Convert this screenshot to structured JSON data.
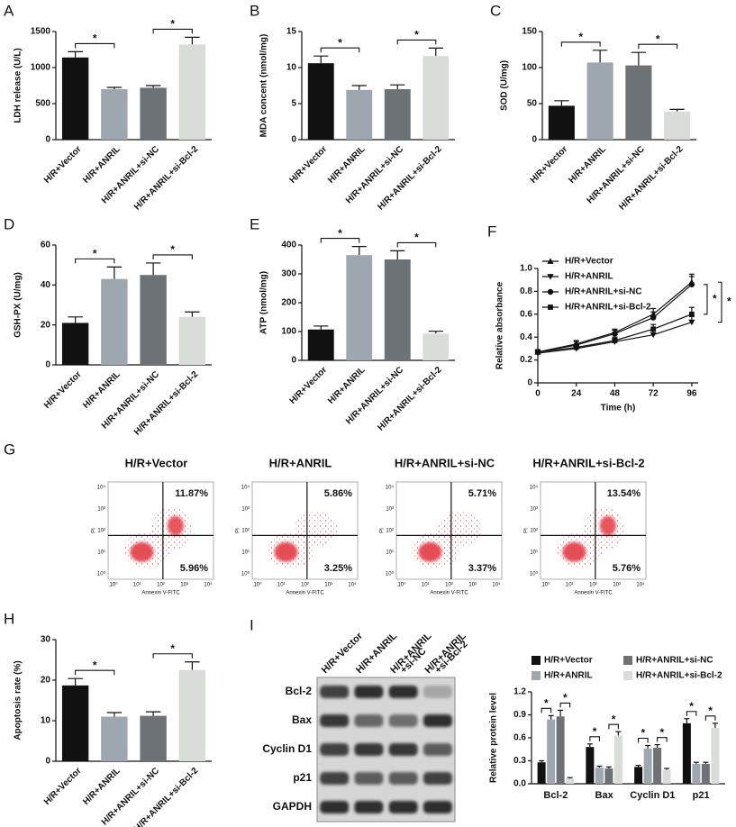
{
  "chart_data": [
    {
      "type": "bar",
      "panel": "A",
      "ylabel": "LDH release (U/L)",
      "categories": [
        "H/R+Vector",
        "H/R+ANRIL",
        "H/R+ANRIL+si-NC",
        "H/R+ANRIL+si-Bcl-2"
      ],
      "values": [
        1140,
        700,
        720,
        1320
      ],
      "errors": [
        80,
        25,
        30,
        100
      ],
      "colors": [
        "#111111",
        "#9ea7b0",
        "#6d7277",
        "#d9ddd8"
      ],
      "ylim": [
        0,
        1500
      ],
      "yticks": [
        0,
        500,
        1000,
        1500
      ],
      "annotations": [
        "*",
        "*"
      ]
    },
    {
      "type": "bar",
      "panel": "B",
      "ylabel": "MDA concent (nmol/mg)",
      "categories": [
        "H/R+Vector",
        "H/R+ANRIL",
        "H/R+ANRIL+si-NC",
        "H/R+ANRIL+si-Bcl-2"
      ],
      "values": [
        10.6,
        6.9,
        7.0,
        11.6
      ],
      "errors": [
        1.0,
        0.6,
        0.6,
        1.1
      ],
      "colors": [
        "#111111",
        "#9ea7b0",
        "#6d7277",
        "#d9ddd8"
      ],
      "ylim": [
        0,
        15
      ],
      "yticks": [
        0,
        5,
        10,
        15
      ],
      "annotations": [
        "*",
        "*"
      ]
    },
    {
      "type": "bar",
      "panel": "C",
      "ylabel": "SOD (U/mg)",
      "categories": [
        "H/R+Vector",
        "H/R+ANRIL",
        "H/R+ANRIL+si-NC",
        "H/R+ANRIL+si-Bcl-2"
      ],
      "values": [
        47,
        107,
        103,
        39
      ],
      "errors": [
        7,
        17,
        18,
        3
      ],
      "colors": [
        "#111111",
        "#9ea7b0",
        "#6d7277",
        "#d9ddd8"
      ],
      "ylim": [
        0,
        150
      ],
      "yticks": [
        0,
        50,
        100,
        150
      ],
      "annotations": [
        "*",
        "*"
      ]
    },
    {
      "type": "bar",
      "panel": "D",
      "ylabel": "GSH-PX (U/mg)",
      "categories": [
        "H/R+Vector",
        "H/R+ANRIL",
        "H/R+ANRIL+si-NC",
        "H/R+ANRIL+si-Bcl-2"
      ],
      "values": [
        21,
        43,
        45,
        24
      ],
      "errors": [
        3,
        6,
        6,
        2.5
      ],
      "colors": [
        "#111111",
        "#9ea7b0",
        "#6d7277",
        "#d9ddd8"
      ],
      "ylim": [
        0,
        60
      ],
      "yticks": [
        0,
        20,
        40,
        60
      ],
      "annotations": [
        "*",
        "*"
      ]
    },
    {
      "type": "bar",
      "panel": "E",
      "ylabel": "ATP (nmol/mg)",
      "categories": [
        "H/R+Vector",
        "H/R+ANRIL",
        "H/R+ANRIL+si-NC",
        "H/R+ANRIL+si-Bcl-2"
      ],
      "values": [
        107,
        365,
        350,
        93
      ],
      "errors": [
        12,
        30,
        30,
        8
      ],
      "colors": [
        "#111111",
        "#9ea7b0",
        "#6d7277",
        "#d9ddd8"
      ],
      "ylim": [
        0,
        400
      ],
      "yticks": [
        0,
        100,
        200,
        300,
        400
      ],
      "annotations": [
        "*",
        "*"
      ]
    },
    {
      "type": "line",
      "panel": "F",
      "xlabel": "Time (h)",
      "ylabel": "Relative absorbance",
      "x": [
        0,
        24,
        48,
        72,
        96
      ],
      "xlim": [
        0,
        100
      ],
      "xticks": [
        0,
        24,
        48,
        72,
        96
      ],
      "ylim": [
        0,
        1
      ],
      "yticks": [
        0,
        0.2,
        0.4,
        0.6,
        0.8,
        {
          "value": 1,
          "label": "1.0"
        }
      ],
      "series": [
        {
          "name": "H/R+Vector",
          "color": "#111111",
          "marker": "triangle-up",
          "values": [
            0.27,
            0.34,
            0.44,
            0.6,
            0.88
          ],
          "errors": [
            0.02,
            0.03,
            0.03,
            0.05,
            0.07
          ]
        },
        {
          "name": "H/R+ANRIL",
          "color": "#111111",
          "marker": "triangle-down",
          "values": [
            0.26,
            0.3,
            0.36,
            0.42,
            0.53
          ],
          "errors": [
            0.02,
            0.02,
            0.03,
            0.04,
            0.05
          ]
        },
        {
          "name": "H/R+ANRIL+si-NC",
          "color": "#111111",
          "marker": "circle",
          "values": [
            0.27,
            0.33,
            0.43,
            0.57,
            0.86
          ],
          "errors": [
            0.02,
            0.03,
            0.03,
            0.05,
            0.07
          ]
        },
        {
          "name": "H/R+ANRIL+si-Bcl-2",
          "color": "#111111",
          "marker": "square",
          "values": [
            0.27,
            0.31,
            0.37,
            0.47,
            0.6
          ],
          "errors": [
            0.02,
            0.02,
            0.03,
            0.04,
            0.06
          ]
        }
      ],
      "annotations": [
        "*",
        "*"
      ]
    },
    {
      "type": "flow",
      "panel": "G",
      "xlabel": "Annexin V-FITC",
      "ylabel": "PI",
      "ticks": [
        {
          "value": 0,
          "label": "10⁰"
        },
        {
          "value": 1,
          "label": "10¹"
        },
        {
          "value": 2,
          "label": "10²"
        },
        {
          "value": 3,
          "label": "10³"
        },
        {
          "value": 4,
          "label": "10⁴"
        }
      ],
      "plots": [
        {
          "title": "H/R+Vector",
          "values": [
            11.87,
            5.96
          ],
          "value_labels": [
            "11.87%",
            "5.96%"
          ]
        },
        {
          "title": "H/R+ANRIL",
          "values": [
            5.86,
            3.25
          ],
          "value_labels": [
            "5.86%",
            "3.25%"
          ]
        },
        {
          "title": "H/R+ANRIL+si-NC",
          "values": [
            5.71,
            3.37
          ],
          "value_labels": [
            "5.71%",
            "3.37%"
          ]
        },
        {
          "title": "H/R+ANRIL+si-Bcl-2",
          "values": [
            13.54,
            5.76
          ],
          "value_labels": [
            "13.54%",
            "5.76%"
          ]
        }
      ]
    },
    {
      "type": "bar",
      "panel": "H",
      "ylabel": "Apoptosis rate (%)",
      "categories": [
        "H/R+Vector",
        "H/R+ANRIL",
        "H/R+ANRIL+si-NC",
        "H/R+ANRIL+si-Bcl-2"
      ],
      "values": [
        18.7,
        11.0,
        11.2,
        22.5
      ],
      "errors": [
        1.7,
        1.0,
        1.0,
        2.0
      ],
      "colors": [
        "#111111",
        "#9ea7b0",
        "#6d7277",
        "#d9ddd8"
      ],
      "ylim": [
        0,
        30
      ],
      "yticks": [
        0,
        10,
        20,
        30
      ],
      "annotations": [
        "*",
        "*"
      ]
    },
    {
      "type": "blot",
      "panel": "I",
      "lanes": [
        [
          "H/R+Vector"
        ],
        [
          "H/R+ANRIL"
        ],
        [
          "H/R+ANRIL",
          "+si-NC"
        ],
        [
          "H/R+ANRIL",
          "+si-Bcl-2"
        ]
      ],
      "rows": [
        "Bcl-2",
        "Bax",
        "Cyclin D1",
        "p21",
        "GAPDH"
      ]
    },
    {
      "type": "grouped-bar",
      "ylabel": "Relative protein level",
      "categories": [
        "Bcl-2",
        "Bax",
        "Cyclin D1",
        "p21"
      ],
      "ylim": [
        0,
        1.2
      ],
      "yticks": [
        {
          "value": 0,
          "label": "0.0"
        },
        0.3,
        0.6,
        0.9,
        1.2
      ],
      "series": [
        {
          "name": "H/R+Vector",
          "color": "#111111",
          "values": [
            0.28,
            0.48,
            0.22,
            0.79
          ],
          "errors": [
            0.02,
            0.04,
            0.02,
            0.06
          ]
        },
        {
          "name": "H/R+ANRIL",
          "color": "#9ea7b0",
          "values": [
            0.84,
            0.21,
            0.46,
            0.26
          ],
          "errors": [
            0.05,
            0.02,
            0.04,
            0.02
          ]
        },
        {
          "name": "H/R+ANRIL+si-NC",
          "color": "#6d7277",
          "values": [
            0.88,
            0.2,
            0.47,
            0.26
          ],
          "errors": [
            0.08,
            0.02,
            0.04,
            0.02
          ]
        },
        {
          "name": "H/R+ANRIL+si-Bcl-2",
          "color": "#d9ddd8",
          "values": [
            0.07,
            0.63,
            0.18,
            0.73
          ],
          "errors": [
            0.01,
            0.05,
            0.02,
            0.06
          ]
        }
      ],
      "annotations": [
        "*",
        "*",
        "*",
        "*",
        "*",
        "*",
        "*",
        "*"
      ]
    }
  ]
}
